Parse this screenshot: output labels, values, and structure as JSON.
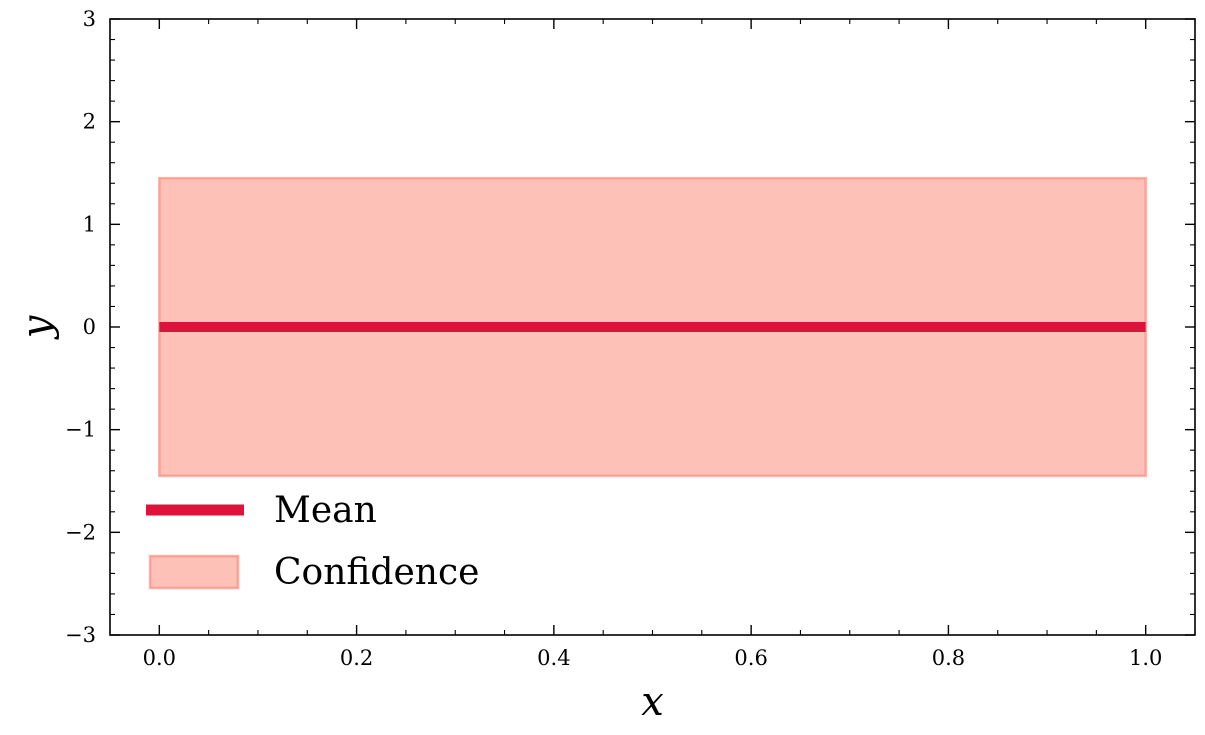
{
  "chart_data": {
    "type": "line",
    "title": "",
    "xlabel": "x",
    "ylabel": "y",
    "xlim": [
      -0.05,
      1.05
    ],
    "ylim": [
      -3,
      3
    ],
    "xticks": [
      0.0,
      0.2,
      0.4,
      0.6,
      0.8,
      1.0
    ],
    "xtick_labels": [
      "0.0",
      "0.2",
      "0.4",
      "0.6",
      "0.8",
      "1.0"
    ],
    "yticks": [
      -3,
      -2,
      -1,
      0,
      1,
      2,
      3
    ],
    "ytick_labels": [
      "−3",
      "−2",
      "−1",
      "0",
      "1",
      "2",
      "3"
    ],
    "grid": false,
    "legend_position": "lower-left",
    "series": [
      {
        "name": "Mean",
        "kind": "line",
        "color": "#dc143c",
        "x": [
          0.0,
          1.0
        ],
        "y": [
          0.0,
          0.0
        ]
      },
      {
        "name": "Confidence",
        "kind": "band",
        "color": "#fa8072",
        "fill_color": "#fec1b7",
        "x": [
          0.0,
          1.0
        ],
        "lower": [
          -1.45,
          -1.45
        ],
        "upper": [
          1.45,
          1.45
        ]
      }
    ]
  }
}
